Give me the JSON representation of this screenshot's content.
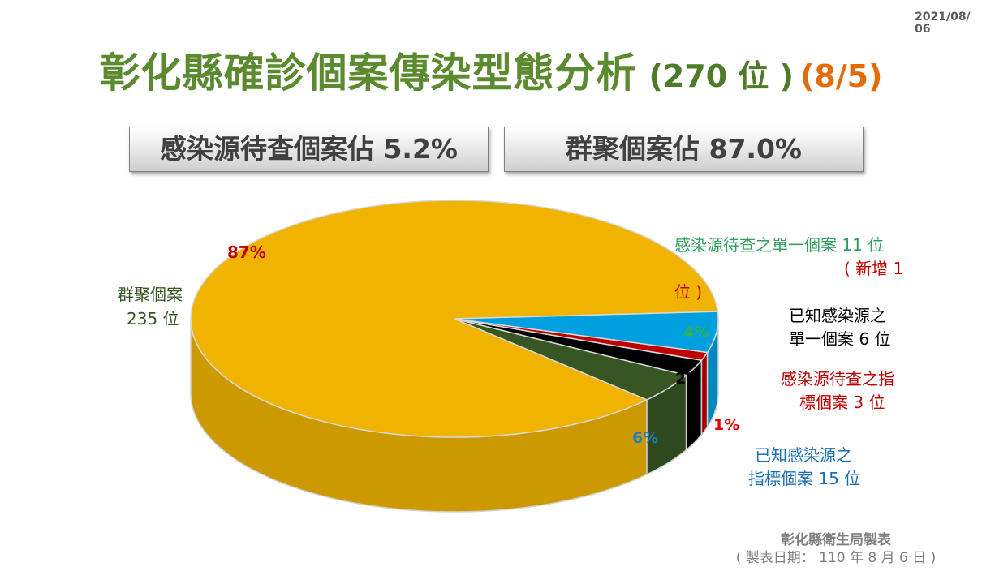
{
  "date": "2021/08/06",
  "title": {
    "main": "彰化縣確診個案傳染型態分析",
    "count": "(270 位 )",
    "date": "(8/5)"
  },
  "summary": {
    "pending_source": "感染源待查個案佔  5.2%",
    "cluster": "群聚個案佔  87.0%"
  },
  "chart_data": {
    "type": "pie",
    "title": "彰化縣確診個案傳染型態分析",
    "total": 270,
    "slices": [
      {
        "name": "群聚個案",
        "value": 235,
        "percent_label": "87%",
        "color": "#f0b400"
      },
      {
        "name": "感染源待查之單一個案",
        "value": 11,
        "percent_label": "4%",
        "color": "#375623"
      },
      {
        "name": "已知感染源之單一個案",
        "value": 6,
        "percent_label": "2%",
        "color": "#000000"
      },
      {
        "name": "感染源待查之指標個案",
        "value": 3,
        "percent_label": "1%",
        "color": "#c00000"
      },
      {
        "name": "已知感染源之指標個案",
        "value": 15,
        "percent_label": "6%",
        "color": "#00a0e0"
      }
    ]
  },
  "labels": {
    "cluster": [
      "群聚個案",
      "235 位"
    ],
    "pending_single": [
      "感染源待查之單一個案 11 位",
      "( 新增 1",
      "位 )"
    ],
    "known_single": [
      "已知感染源之",
      "單一個案 6 位"
    ],
    "pending_index": [
      "感染源待查之指",
      "標個案 3 位"
    ],
    "known_index": [
      "已知感染源之",
      "指標個案 15 位"
    ]
  },
  "credit": {
    "line1": "彰化縣衛生局製表",
    "line2": "( 製表日期： 110 年 8 月 6 日 )"
  }
}
